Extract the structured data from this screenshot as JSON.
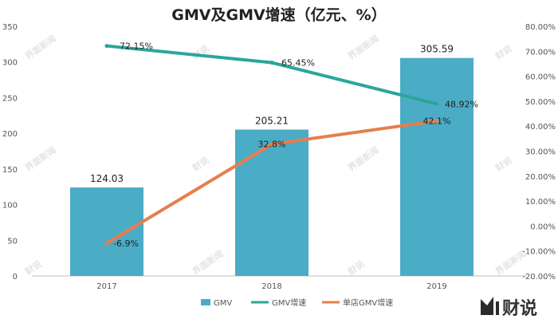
{
  "chart_data": {
    "type": "bar",
    "title": "GMV及GMV增速（亿元、%）",
    "categories": [
      "2017",
      "2018",
      "2019"
    ],
    "series": [
      {
        "name": "GMV",
        "type": "bar",
        "axis": "left",
        "values": [
          124.03,
          205.21,
          305.59
        ],
        "labels": [
          "124.03",
          "205.21",
          "305.59"
        ]
      },
      {
        "name": "GMV增速",
        "type": "line",
        "axis": "right",
        "values": [
          72.15,
          65.45,
          48.92
        ],
        "labels": [
          "72.15%",
          "65.45%",
          "48.92%"
        ]
      },
      {
        "name": "单店GMV增速",
        "type": "line",
        "axis": "right",
        "values": [
          -6.9,
          32.8,
          42.1
        ],
        "labels": [
          "-6.9%",
          "32.8%",
          "42.1%"
        ]
      }
    ],
    "y_left": {
      "min": 0,
      "max": 350,
      "step": 50,
      "ticks": [
        "0",
        "50",
        "100",
        "150",
        "200",
        "250",
        "300",
        "350"
      ]
    },
    "y_right": {
      "min": -20,
      "max": 80,
      "step": 10,
      "ticks": [
        "-20.00%",
        "-10.00%",
        "0.00%",
        "10.00%",
        "20.00%",
        "30.00%",
        "40.00%",
        "50.00%",
        "60.00%",
        "70.00%",
        "80.00%"
      ]
    },
    "grid": false,
    "legend_position": "bottom"
  },
  "colors": {
    "bar": "#4bacc6",
    "gmv_growth": "#2ba69a",
    "store_growth": "#e57e4e",
    "axis": "#bfbfbf"
  },
  "watermark": {
    "text": "界面新闻",
    "text2": "财说"
  },
  "logo": {
    "text": "财说",
    "icon": "bar-chart-logo-icon"
  }
}
